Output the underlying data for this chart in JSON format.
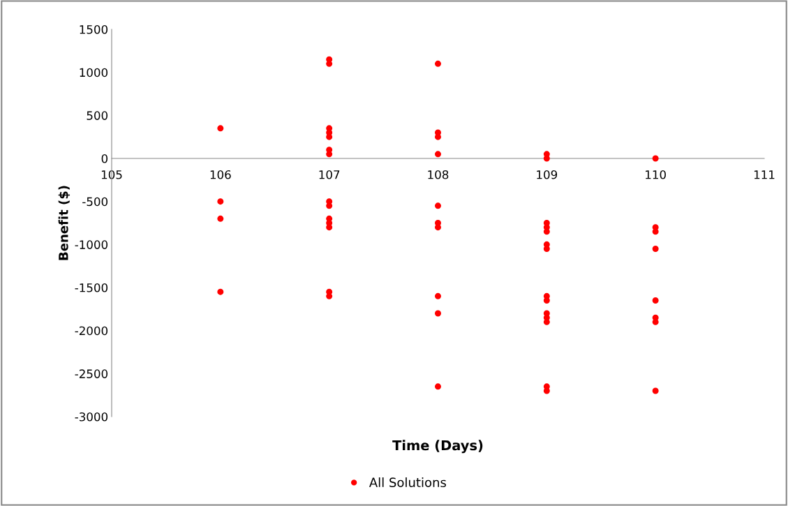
{
  "chart_data": {
    "type": "scatter",
    "xlabel": "Time (Days)",
    "ylabel": "Benefit ($)",
    "xlim": [
      105,
      111
    ],
    "xticks": [
      105,
      106,
      107,
      108,
      109,
      110,
      111
    ],
    "ylim": [
      -3000,
      1500
    ],
    "yticks": [
      -3000,
      -2500,
      -2000,
      -1500,
      -1000,
      -500,
      0,
      500,
      1000,
      1500
    ],
    "grid": false,
    "legend": "bottom",
    "marker": "circle",
    "series": [
      {
        "name": "All Solutions",
        "color": "#ff0000",
        "x": [
          106,
          106,
          106,
          106,
          107,
          107,
          107,
          107,
          107,
          107,
          107,
          107,
          107,
          107,
          107,
          107,
          107,
          107,
          108,
          108,
          108,
          108,
          108,
          108,
          108,
          108,
          108,
          108,
          109,
          109,
          109,
          109,
          109,
          109,
          109,
          109,
          109,
          109,
          109,
          109,
          109,
          109,
          110,
          110,
          110,
          110,
          110,
          110,
          110,
          110
        ],
        "values": [
          350,
          -500,
          -700,
          -1550,
          1150,
          1100,
          350,
          300,
          250,
          100,
          50,
          -500,
          -550,
          -700,
          -750,
          -800,
          -1550,
          -1600,
          1100,
          300,
          250,
          50,
          -550,
          -750,
          -800,
          -1600,
          -1800,
          -2650,
          50,
          0,
          -750,
          -800,
          -850,
          -1000,
          -1050,
          -1600,
          -1650,
          -1800,
          -1850,
          -1900,
          -2650,
          -2700,
          0,
          -800,
          -850,
          -1050,
          -1650,
          -1850,
          -1900,
          -2700
        ]
      }
    ]
  }
}
